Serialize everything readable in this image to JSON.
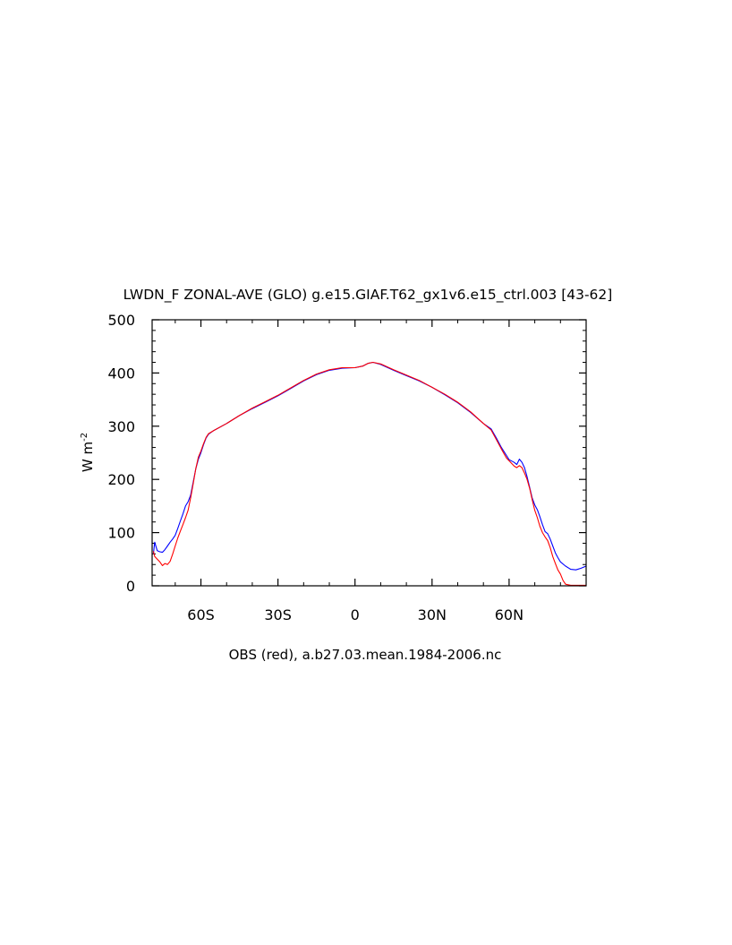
{
  "chart_data": {
    "type": "line",
    "title": "LWDN_F ZONAL-AVE (GLO) g.e15.GIAF.T62_gx1v6.e15_ctrl.003 [43-62]",
    "ylabel": "W m",
    "ylabel_superscript": "-2",
    "xlabel": "OBS (red), a.b27.03.mean.1984-2006.nc",
    "xlim": [
      -79,
      90
    ],
    "ylim": [
      0,
      500
    ],
    "x_ticks": [
      {
        "value": -60,
        "label": "60S"
      },
      {
        "value": -30,
        "label": "30S"
      },
      {
        "value": 0,
        "label": "0"
      },
      {
        "value": 30,
        "label": "30N"
      },
      {
        "value": 60,
        "label": "60N"
      }
    ],
    "y_ticks": [
      {
        "value": 0,
        "label": "0"
      },
      {
        "value": 100,
        "label": "100"
      },
      {
        "value": 200,
        "label": "200"
      },
      {
        "value": 300,
        "label": "300"
      },
      {
        "value": 400,
        "label": "400"
      },
      {
        "value": 500,
        "label": "500"
      }
    ],
    "grid": false,
    "series": [
      {
        "color": "#0000ff",
        "points": [
          [
            -78.5,
            60
          ],
          [
            -78,
            82
          ],
          [
            -77,
            66
          ],
          [
            -76,
            64
          ],
          [
            -75,
            63
          ],
          [
            -74,
            68
          ],
          [
            -73,
            75
          ],
          [
            -72,
            82
          ],
          [
            -71,
            88
          ],
          [
            -70,
            95
          ],
          [
            -69,
            108
          ],
          [
            -68,
            122
          ],
          [
            -67,
            135
          ],
          [
            -66,
            150
          ],
          [
            -65,
            158
          ],
          [
            -64,
            170
          ],
          [
            -63,
            195
          ],
          [
            -62,
            220
          ],
          [
            -61,
            238
          ],
          [
            -60,
            250
          ],
          [
            -59,
            265
          ],
          [
            -58,
            278
          ],
          [
            -57,
            285
          ],
          [
            -55,
            292
          ],
          [
            -50,
            305
          ],
          [
            -45,
            320
          ],
          [
            -40,
            333
          ],
          [
            -35,
            345
          ],
          [
            -30,
            357
          ],
          [
            -25,
            371
          ],
          [
            -20,
            385
          ],
          [
            -15,
            397
          ],
          [
            -10,
            405
          ],
          [
            -5,
            409
          ],
          [
            0,
            410
          ],
          [
            3,
            413
          ],
          [
            5,
            418
          ],
          [
            7,
            420
          ],
          [
            10,
            416
          ],
          [
            15,
            405
          ],
          [
            20,
            395
          ],
          [
            25,
            385
          ],
          [
            30,
            373
          ],
          [
            35,
            359
          ],
          [
            40,
            344
          ],
          [
            45,
            326
          ],
          [
            50,
            305
          ],
          [
            53,
            295
          ],
          [
            55,
            278
          ],
          [
            57,
            260
          ],
          [
            59,
            245
          ],
          [
            60,
            237
          ],
          [
            62,
            232
          ],
          [
            63,
            228
          ],
          [
            64,
            238
          ],
          [
            65,
            232
          ],
          [
            66,
            222
          ],
          [
            67,
            205
          ],
          [
            68,
            185
          ],
          [
            69,
            165
          ],
          [
            70,
            152
          ],
          [
            71,
            143
          ],
          [
            72,
            130
          ],
          [
            73,
            115
          ],
          [
            74,
            102
          ],
          [
            75,
            98
          ],
          [
            76,
            88
          ],
          [
            77,
            75
          ],
          [
            78,
            62
          ],
          [
            79,
            53
          ],
          [
            80,
            45
          ],
          [
            82,
            37
          ],
          [
            84,
            31
          ],
          [
            86,
            30
          ],
          [
            88,
            33
          ],
          [
            90,
            37
          ]
        ]
      },
      {
        "color": "#ff0000",
        "points": [
          [
            -78.5,
            65
          ],
          [
            -78,
            55
          ],
          [
            -77,
            50
          ],
          [
            -76,
            45
          ],
          [
            -75,
            38
          ],
          [
            -74,
            42
          ],
          [
            -73,
            40
          ],
          [
            -72,
            46
          ],
          [
            -71,
            60
          ],
          [
            -70,
            75
          ],
          [
            -69,
            90
          ],
          [
            -68,
            103
          ],
          [
            -67,
            115
          ],
          [
            -66,
            128
          ],
          [
            -65,
            142
          ],
          [
            -64,
            165
          ],
          [
            -63,
            192
          ],
          [
            -62,
            220
          ],
          [
            -61,
            242
          ],
          [
            -60,
            253
          ],
          [
            -59,
            267
          ],
          [
            -58,
            279
          ],
          [
            -57,
            286
          ],
          [
            -55,
            292
          ],
          [
            -50,
            305
          ],
          [
            -45,
            320
          ],
          [
            -40,
            334
          ],
          [
            -35,
            346
          ],
          [
            -30,
            358
          ],
          [
            -25,
            372
          ],
          [
            -20,
            386
          ],
          [
            -15,
            398
          ],
          [
            -10,
            406
          ],
          [
            -5,
            410
          ],
          [
            0,
            410
          ],
          [
            3,
            413
          ],
          [
            5,
            418
          ],
          [
            7,
            420
          ],
          [
            10,
            417
          ],
          [
            15,
            406
          ],
          [
            20,
            396
          ],
          [
            25,
            386
          ],
          [
            30,
            373
          ],
          [
            35,
            360
          ],
          [
            40,
            345
          ],
          [
            45,
            327
          ],
          [
            50,
            305
          ],
          [
            53,
            293
          ],
          [
            55,
            275
          ],
          [
            57,
            257
          ],
          [
            59,
            240
          ],
          [
            60,
            235
          ],
          [
            62,
            225
          ],
          [
            63,
            222
          ],
          [
            64,
            226
          ],
          [
            65,
            222
          ],
          [
            66,
            212
          ],
          [
            67,
            200
          ],
          [
            68,
            183
          ],
          [
            69,
            162
          ],
          [
            70,
            142
          ],
          [
            71,
            128
          ],
          [
            72,
            112
          ],
          [
            73,
            100
          ],
          [
            74,
            92
          ],
          [
            75,
            85
          ],
          [
            76,
            72
          ],
          [
            77,
            55
          ],
          [
            78,
            42
          ],
          [
            79,
            30
          ],
          [
            80,
            22
          ],
          [
            81,
            10
          ],
          [
            82,
            3
          ],
          [
            84,
            1
          ],
          [
            86,
            1
          ],
          [
            88,
            1
          ],
          [
            90,
            1
          ]
        ]
      }
    ]
  }
}
